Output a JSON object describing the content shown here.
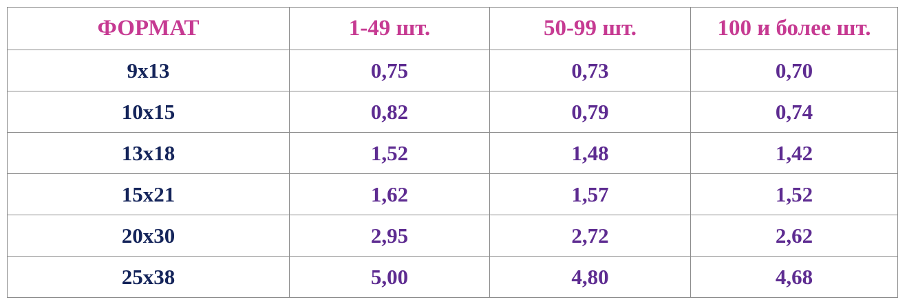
{
  "colors": {
    "header_text": "#c63a92",
    "format_text": "#14245a",
    "price_text": "#5e2c91",
    "grid_lines": "#8c8c8c"
  },
  "table": {
    "headers": [
      "ФОРМАТ",
      "1-49 шт.",
      "50-99 шт.",
      "100 и более шт."
    ],
    "rows": [
      {
        "format": "9x13",
        "prices": [
          "0,75",
          "0,73",
          "0,70"
        ]
      },
      {
        "format": "10x15",
        "prices": [
          "0,82",
          "0,79",
          "0,74"
        ]
      },
      {
        "format": "13x18",
        "prices": [
          "1,52",
          "1,48",
          "1,42"
        ]
      },
      {
        "format": "15x21",
        "prices": [
          "1,62",
          "1,57",
          "1,52"
        ]
      },
      {
        "format": "20x30",
        "prices": [
          "2,95",
          "2,72",
          "2,62"
        ]
      },
      {
        "format": "25x38",
        "prices": [
          "5,00",
          "4,80",
          "4,68"
        ]
      }
    ]
  }
}
